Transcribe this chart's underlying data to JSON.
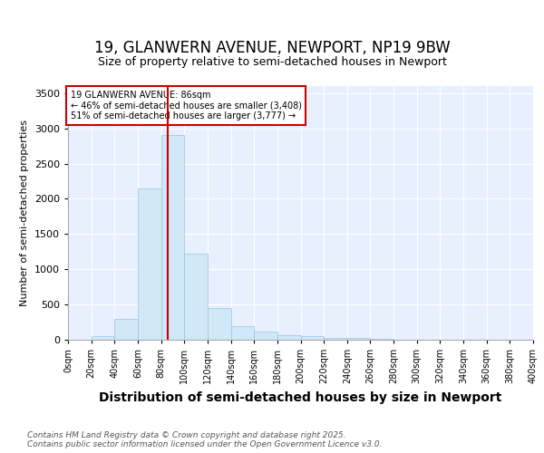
{
  "title1": "19, GLANWERN AVENUE, NEWPORT, NP19 9BW",
  "title2": "Size of property relative to semi-detached houses in Newport",
  "xlabel": "Distribution of semi-detached houses by size in Newport",
  "ylabel": "Number of semi-detached properties",
  "bin_labels": [
    "0sqm",
    "20sqm",
    "40sqm",
    "60sqm",
    "80sqm",
    "100sqm",
    "120sqm",
    "140sqm",
    "160sqm",
    "180sqm",
    "200sqm",
    "220sqm",
    "240sqm",
    "260sqm",
    "280sqm",
    "300sqm",
    "320sqm",
    "340sqm",
    "360sqm",
    "380sqm",
    "400sqm"
  ],
  "bin_edges": [
    0,
    20,
    40,
    60,
    80,
    100,
    120,
    140,
    160,
    180,
    200,
    220,
    240,
    260,
    280,
    300,
    320,
    340,
    360,
    380,
    400
  ],
  "bar_heights": [
    0,
    50,
    300,
    2150,
    2900,
    1220,
    450,
    190,
    110,
    70,
    50,
    30,
    20,
    8,
    4,
    2,
    1,
    0,
    0,
    0
  ],
  "bar_color": "#d0e8f8",
  "bar_edge_color": "#9ac4e0",
  "red_line_x": 86,
  "red_line_color": "#cc0000",
  "annotation_text": "19 GLANWERN AVENUE: 86sqm\n← 46% of semi-detached houses are smaller (3,408)\n51% of semi-detached houses are larger (3,777) →",
  "annotation_box_color": "white",
  "annotation_box_edge": "#cc0000",
  "ylim": [
    0,
    3600
  ],
  "yticks": [
    0,
    500,
    1000,
    1500,
    2000,
    2500,
    3000,
    3500
  ],
  "footer": "Contains HM Land Registry data © Crown copyright and database right 2025.\nContains public sector information licensed under the Open Government Licence v3.0.",
  "background_color": "#ffffff",
  "plot_bg_color": "#e8f0ff",
  "grid_color": "#ffffff",
  "title1_fontsize": 12,
  "title2_fontsize": 9,
  "xlabel_fontsize": 10,
  "ylabel_fontsize": 8
}
